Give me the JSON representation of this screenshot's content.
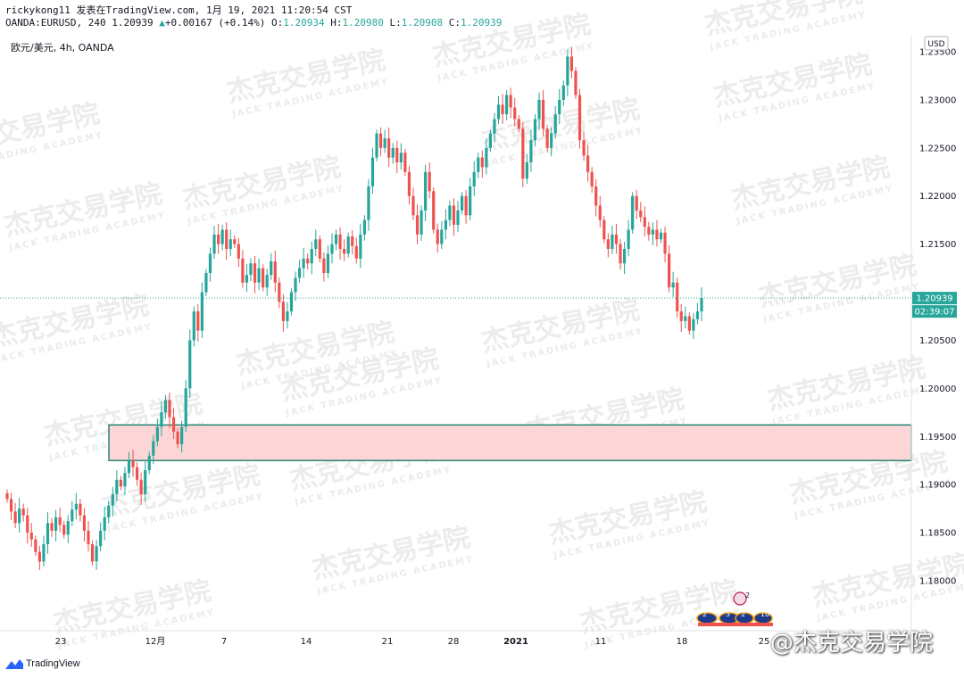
{
  "header": {
    "publisher_line": "rickykong11 发表在TradingView.com, 1月 19, 2021 11:20:54 CST",
    "symbol_prefix": "OANDA:EURUSD, 240 1.20939",
    "change": "+0.00167 (+0.14%)",
    "ohlc": {
      "o_label": "O:",
      "o": "1.20934",
      "h_label": "H:",
      "h": "1.20980",
      "l_label": "L:",
      "l": "1.20908",
      "c_label": "C:",
      "c": "1.20939"
    },
    "chart_symbol": "欧元/美元, 4h, OANDA"
  },
  "axis": {
    "currency": "USD"
  },
  "watermark": {
    "cn": "杰克交易学院",
    "en": "JACK TRADING ACADEMY"
  },
  "footer": {
    "brand": "TradingView",
    "weibo": "@杰克交易学院"
  },
  "colors": {
    "up": "#26a69a",
    "down": "#ef5350",
    "zone_fill": "#fcd6d6",
    "zone_border": "#1b7f6e",
    "price_label_bg": "#26a69a"
  },
  "chart_data": {
    "type": "candlestick",
    "title": "",
    "xlabel": "",
    "ylabel": "",
    "ylim": [
      1.1767,
      1.2405
    ],
    "y_ticks": [
      "1.18000",
      "1.18500",
      "1.19000",
      "1.19500",
      "1.20000",
      "1.20500",
      "1.21000",
      "1.21500",
      "1.22000",
      "1.22500",
      "1.23000",
      "1.23500"
    ],
    "x_ticks": [
      "23",
      "12月",
      "7",
      "14",
      "21",
      "28",
      "2021",
      "11",
      "18",
      "25"
    ],
    "grid": false,
    "last_price": "1.20939",
    "countdown": "02:39:07",
    "zone": {
      "low": 1.1925,
      "high": 1.1962,
      "start_tick": "12月"
    },
    "closes": [
      1.1885,
      1.1872,
      1.186,
      1.1875,
      1.1868,
      1.185,
      1.1843,
      1.183,
      1.182,
      1.1838,
      1.186,
      1.1852,
      1.1866,
      1.1858,
      1.1848,
      1.1862,
      1.1874,
      1.188,
      1.1868,
      1.1852,
      1.1838,
      1.182,
      1.1836,
      1.1852,
      1.1866,
      1.1878,
      1.189,
      1.1905,
      1.1898,
      1.1912,
      1.1925,
      1.1918,
      1.1905,
      1.189,
      1.1915,
      1.193,
      1.1945,
      1.196,
      1.1975,
      1.1988,
      1.197,
      1.1955,
      1.1942,
      1.196,
      1.2,
      1.205,
      1.208,
      1.206,
      1.21,
      1.212,
      1.214,
      1.216,
      1.215,
      1.2165,
      1.2145,
      1.2155,
      1.215,
      1.2135,
      1.211,
      1.2118,
      1.213,
      1.211,
      1.2125,
      1.2105,
      1.2118,
      1.2132,
      1.211,
      1.209,
      1.207,
      1.208,
      1.21,
      1.2115,
      1.2125,
      1.2135,
      1.213,
      1.2145,
      1.2155,
      1.2135,
      1.212,
      1.214,
      1.215,
      1.216,
      1.2145,
      1.214,
      1.2158,
      1.2148,
      1.2135,
      1.216,
      1.2175,
      1.221,
      1.224,
      1.2265,
      1.225,
      1.226,
      1.224,
      1.225,
      1.2235,
      1.2245,
      1.2225,
      1.22,
      1.218,
      1.216,
      1.2185,
      1.2225,
      1.2205,
      1.2165,
      1.215,
      1.2165,
      1.2175,
      1.219,
      1.217,
      1.2185,
      1.22,
      1.218,
      1.221,
      1.2225,
      1.224,
      1.223,
      1.225,
      1.2265,
      1.228,
      1.2295,
      1.2285,
      1.2305,
      1.2292,
      1.228,
      1.227,
      1.2218,
      1.2235,
      1.2258,
      1.228,
      1.23,
      1.227,
      1.225,
      1.2265,
      1.2285,
      1.23,
      1.2315,
      1.2345,
      1.233,
      1.2305,
      1.2258,
      1.2242,
      1.2225,
      1.221,
      1.219,
      1.2175,
      1.2155,
      1.2145,
      1.216,
      1.215,
      1.213,
      1.2145,
      1.2165,
      1.22,
      1.2185,
      1.2178,
      1.2168,
      1.216,
      1.2165,
      1.2155,
      1.2162,
      1.214,
      1.2105,
      1.211,
      1.208,
      1.207,
      1.2075,
      1.206,
      1.2072,
      1.208,
      1.2094
    ]
  }
}
